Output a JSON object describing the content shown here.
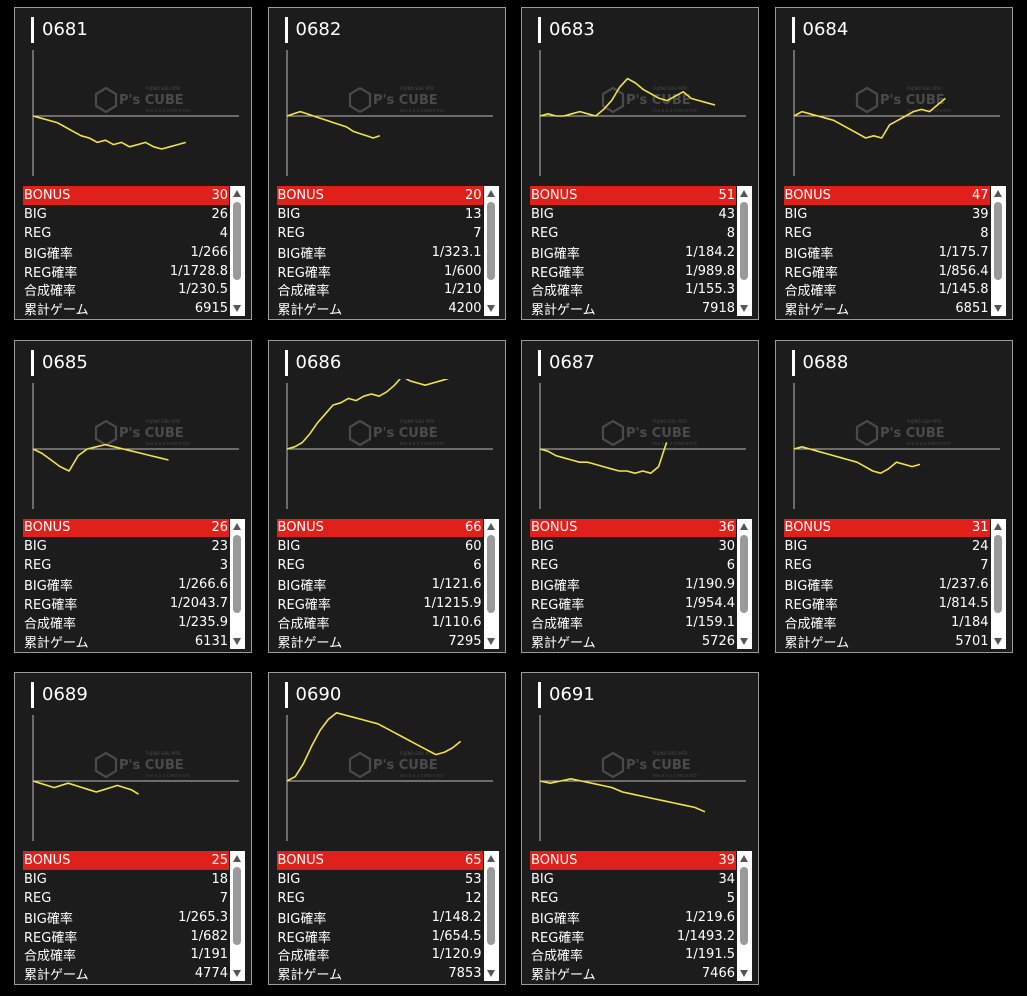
{
  "labels": {
    "bonus": "BONUS",
    "big": "BIG",
    "reg": "REG",
    "big_rate": "BIG確率",
    "reg_rate": "REG確率",
    "combined_rate": "合成確率",
    "total_games": "累計ゲーム"
  },
  "watermark": {
    "brand": "P's CUBE",
    "small_top": "FUJINO SISU MTR",
    "small_bottom": "ｍｅｋｏｚＣＭＯＶＯＯ"
  },
  "colors": {
    "bonus_row": "#e0211b",
    "line": "#f2e24a",
    "card_bg": "#1c1c1c",
    "border": "#9a9a9a"
  },
  "machines": [
    {
      "id": "0681",
      "bonus": "30",
      "big": "26",
      "reg": "4",
      "big_rate": "1/266",
      "reg_rate": "1/1728.8",
      "combined_rate": "1/230.5",
      "total_games": "6915",
      "series": [
        0,
        -1,
        -2,
        -3,
        -5,
        -7,
        -9,
        -10,
        -12,
        -11,
        -13,
        -12,
        -14,
        -13,
        -12,
        -14,
        -15,
        -14,
        -13,
        -12
      ]
    },
    {
      "id": "0682",
      "bonus": "20",
      "big": "13",
      "reg": "7",
      "big_rate": "1/323.1",
      "reg_rate": "1/600",
      "combined_rate": "1/210",
      "total_games": "4200",
      "series": [
        0,
        1,
        2,
        1,
        0,
        -1,
        -2,
        -3,
        -4,
        -5,
        -7,
        -8,
        -9,
        -10,
        -9
      ]
    },
    {
      "id": "0683",
      "bonus": "51",
      "big": "43",
      "reg": "8",
      "big_rate": "1/184.2",
      "reg_rate": "1/989.8",
      "combined_rate": "1/155.3",
      "total_games": "7918",
      "series": [
        0,
        1,
        0,
        0,
        1,
        2,
        1,
        0,
        3,
        7,
        13,
        17,
        15,
        12,
        10,
        8,
        7,
        9,
        11,
        8,
        7,
        6,
        5
      ]
    },
    {
      "id": "0684",
      "bonus": "47",
      "big": "39",
      "reg": "8",
      "big_rate": "1/175.7",
      "reg_rate": "1/856.4",
      "combined_rate": "1/145.8",
      "total_games": "6851",
      "series": [
        0,
        2,
        1,
        0,
        -1,
        -2,
        -4,
        -6,
        -8,
        -10,
        -9,
        -10,
        -4,
        -2,
        0,
        2,
        3,
        2,
        5,
        8
      ]
    },
    {
      "id": "0685",
      "bonus": "26",
      "big": "23",
      "reg": "3",
      "big_rate": "1/266.6",
      "reg_rate": "1/2043.7",
      "combined_rate": "1/235.9",
      "total_games": "6131",
      "series": [
        0,
        -2,
        -5,
        -8,
        -10,
        -3,
        0,
        1,
        2,
        1,
        0,
        -1,
        -2,
        -3,
        -4,
        -5
      ]
    },
    {
      "id": "0686",
      "bonus": "66",
      "big": "60",
      "reg": "6",
      "big_rate": "1/121.6",
      "reg_rate": "1/1215.9",
      "combined_rate": "1/110.6",
      "total_games": "7295",
      "series": [
        0,
        1,
        3,
        7,
        12,
        16,
        20,
        21,
        23,
        22,
        24,
        25,
        24,
        26,
        29,
        33,
        31,
        30,
        29,
        30,
        31,
        32
      ]
    },
    {
      "id": "0687",
      "bonus": "36",
      "big": "30",
      "reg": "6",
      "big_rate": "1/190.9",
      "reg_rate": "1/954.4",
      "combined_rate": "1/159.1",
      "total_games": "5726",
      "series": [
        0,
        -1,
        -3,
        -4,
        -5,
        -6,
        -6,
        -7,
        -8,
        -9,
        -10,
        -10,
        -11,
        -10,
        -11,
        -8,
        3
      ]
    },
    {
      "id": "0688",
      "bonus": "31",
      "big": "24",
      "reg": "7",
      "big_rate": "1/237.6",
      "reg_rate": "1/814.5",
      "combined_rate": "1/184",
      "total_games": "5701",
      "series": [
        0,
        1,
        0,
        -1,
        -2,
        -3,
        -4,
        -5,
        -6,
        -8,
        -10,
        -11,
        -9,
        -6,
        -7,
        -8,
        -7
      ]
    },
    {
      "id": "0689",
      "bonus": "25",
      "big": "18",
      "reg": "7",
      "big_rate": "1/265.3",
      "reg_rate": "1/682",
      "combined_rate": "1/191",
      "total_games": "4774",
      "series": [
        0,
        -1,
        -2,
        -3,
        -2,
        -1,
        -2,
        -3,
        -4,
        -5,
        -4,
        -3,
        -2,
        -3,
        -4,
        -6
      ]
    },
    {
      "id": "0690",
      "bonus": "65",
      "big": "53",
      "reg": "12",
      "big_rate": "1/148.2",
      "reg_rate": "1/654.5",
      "combined_rate": "1/120.9",
      "total_games": "7853",
      "series": [
        0,
        2,
        8,
        16,
        23,
        28,
        31,
        30,
        29,
        28,
        27,
        26,
        24,
        22,
        20,
        18,
        16,
        14,
        12,
        13,
        15,
        18
      ]
    },
    {
      "id": "0691",
      "bonus": "39",
      "big": "34",
      "reg": "5",
      "big_rate": "1/219.6",
      "reg_rate": "1/1493.2",
      "combined_rate": "1/191.5",
      "total_games": "7466",
      "series": [
        0,
        -1,
        0,
        1,
        0,
        -1,
        -2,
        -3,
        -5,
        -6,
        -7,
        -8,
        -9,
        -10,
        -11,
        -12,
        -14
      ]
    }
  ]
}
